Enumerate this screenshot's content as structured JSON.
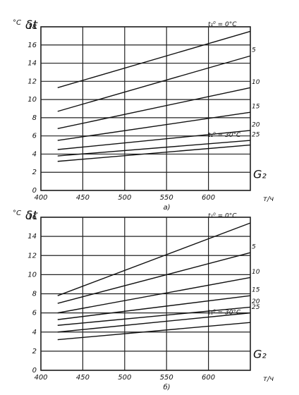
{
  "chart_data": [
    {
      "type": "line",
      "caption": "а)",
      "y_label": "δt",
      "y_unit": "°C",
      "x_label": "G₂",
      "x_unit": "т/ч",
      "xlim": [
        400,
        650
      ],
      "xticks": [
        400,
        450,
        500,
        550,
        600
      ],
      "ylim": [
        0,
        18
      ],
      "yticks": [
        0,
        2,
        4,
        6,
        8,
        10,
        12,
        14,
        16,
        18
      ],
      "grid": true,
      "x": [
        420,
        650
      ],
      "series": [
        {
          "name": "t₁⁰ = 0°C",
          "color": "#111111",
          "values": [
            11.3,
            17.5
          ]
        },
        {
          "name": "5",
          "color": "#111111",
          "values": [
            8.7,
            14.8
          ]
        },
        {
          "name": "10",
          "color": "#111111",
          "values": [
            6.8,
            11.3
          ]
        },
        {
          "name": "15",
          "color": "#111111",
          "values": [
            5.5,
            8.6
          ]
        },
        {
          "name": "20",
          "color": "#111111",
          "values": [
            4.5,
            6.6
          ]
        },
        {
          "name": "25",
          "color": "#111111",
          "values": [
            3.8,
            5.5
          ]
        },
        {
          "name": "t₁⁰ = 30°C",
          "color": "#111111",
          "values": [
            3.2,
            5.0
          ]
        }
      ]
    },
    {
      "type": "line",
      "caption": "б)",
      "y_label": "δt",
      "y_unit": "°C",
      "x_label": "G₂",
      "x_unit": "т/ч",
      "xlim": [
        400,
        650
      ],
      "xticks": [
        400,
        450,
        500,
        550,
        600
      ],
      "ylim": [
        0,
        16
      ],
      "yticks": [
        0,
        2,
        4,
        6,
        8,
        10,
        12,
        14,
        16
      ],
      "grid": true,
      "x": [
        420,
        650
      ],
      "series": [
        {
          "name": "t₁⁰ = 0°C",
          "color": "#111111",
          "values": [
            7.8,
            15.4
          ]
        },
        {
          "name": "5",
          "color": "#111111",
          "values": [
            7.0,
            12.3
          ]
        },
        {
          "name": "10",
          "color": "#111111",
          "values": [
            6.0,
            9.7
          ]
        },
        {
          "name": "15",
          "color": "#111111",
          "values": [
            5.3,
            7.8
          ]
        },
        {
          "name": "20",
          "color": "#111111",
          "values": [
            4.7,
            6.6
          ]
        },
        {
          "name": "25",
          "color": "#111111",
          "values": [
            4.0,
            6.0
          ]
        },
        {
          "name": "t₁⁰ = 30°C",
          "color": "#111111",
          "values": [
            3.2,
            5.0
          ]
        }
      ]
    }
  ]
}
